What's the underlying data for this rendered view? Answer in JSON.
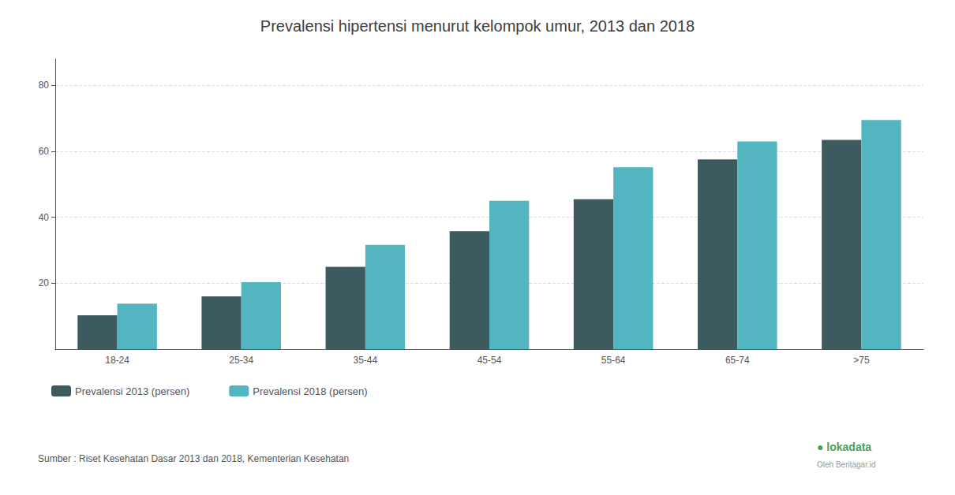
{
  "chart_data": {
    "type": "bar",
    "title": "Prevalensi hipertensi menurut kelompok umur, 2013 dan 2018",
    "categories": [
      "18-24",
      "25-34",
      "35-44",
      "45-54",
      "55-64",
      "65-74",
      ">75"
    ],
    "series": [
      {
        "name": "Prevalensi 2013 (persen)",
        "color": "#3d5a5e",
        "values": [
          10.3,
          16.0,
          25.0,
          35.8,
          45.5,
          57.6,
          63.5
        ]
      },
      {
        "name": "Prevalensi 2018 (persen)",
        "color": "#52b5bf",
        "values": [
          13.8,
          20.3,
          31.6,
          45.0,
          55.2,
          63.0,
          69.5
        ]
      }
    ],
    "ylim": [
      0,
      88
    ],
    "yticks": [
      20,
      40,
      60,
      80
    ],
    "grid": true,
    "legend": "lower left",
    "annotations": [
      "Sumber : Riset Kesehatan Dasar 2013 dan 2018, Kementerian Kesehatan",
      "● lokadata",
      "Oleh Beritagar.id"
    ]
  }
}
